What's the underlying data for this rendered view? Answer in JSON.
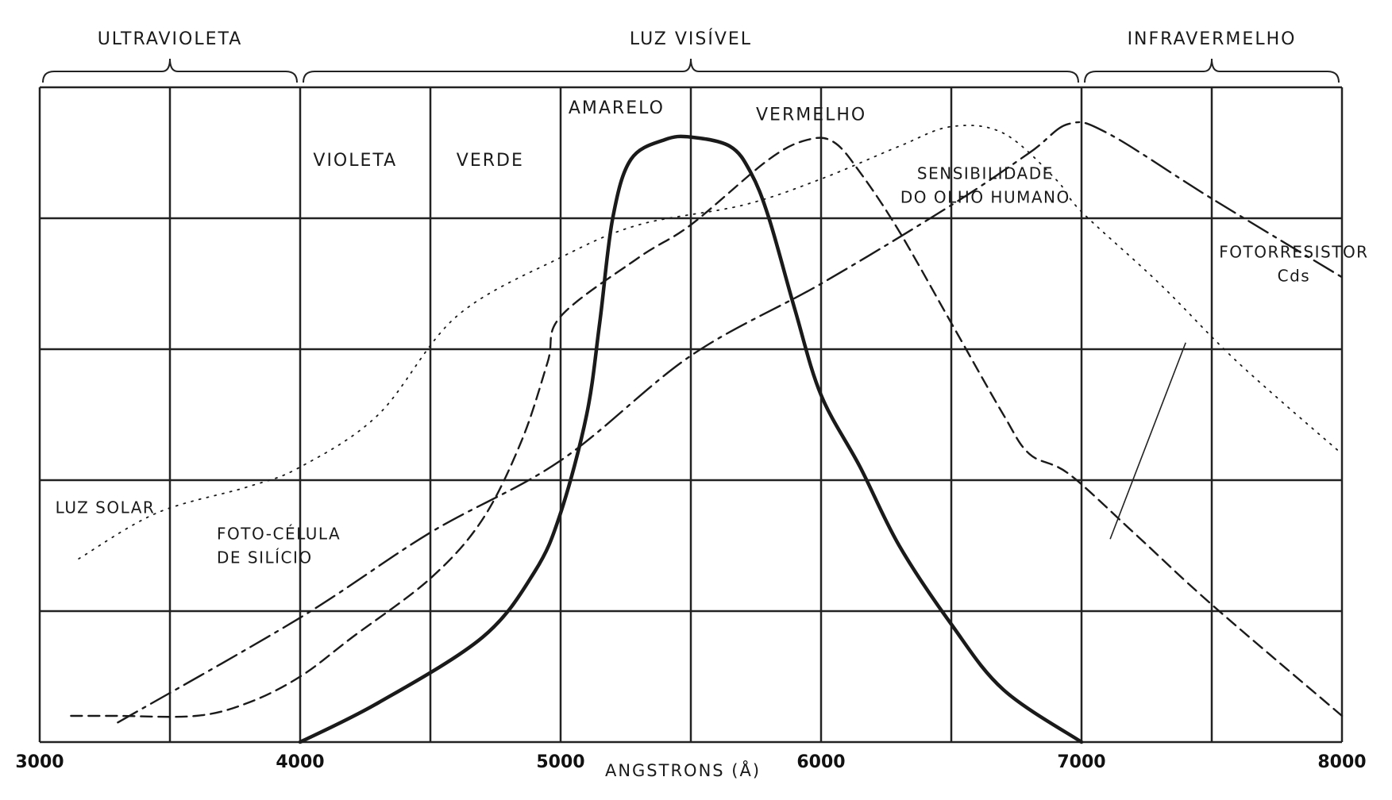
{
  "chart_data": {
    "type": "line",
    "title": "",
    "xlabel": "ANGSTRONS (Å)",
    "ylabel": "",
    "xlim": [
      3000,
      8000
    ],
    "ylim": [
      0,
      5
    ],
    "grid": true,
    "x_ticks": [
      {
        "value": 3000,
        "label": "3000"
      },
      {
        "value": 4000,
        "label": "4000"
      },
      {
        "value": 5000,
        "label": "5000"
      },
      {
        "value": 6000,
        "label": "6000"
      },
      {
        "value": 7000,
        "label": "7000"
      },
      {
        "value": 8000,
        "label": "8000"
      }
    ],
    "regions": [
      {
        "label": "ULTRAVIOLETA",
        "from": 3000,
        "to": 4000
      },
      {
        "label": "LUZ VISÍVEL",
        "from": 4000,
        "to": 7000
      },
      {
        "label": "INFRAVERMELHO",
        "from": 7000,
        "to": 8000
      }
    ],
    "color_bands": [
      {
        "label": "VIOLETA",
        "x": 4050,
        "y": 4.4
      },
      {
        "label": "VERDE",
        "x": 4600,
        "y": 4.4
      },
      {
        "label": "AMARELO",
        "x": 5030,
        "y": 4.8
      },
      {
        "label": "VERMELHO",
        "x": 5750,
        "y": 4.75
      }
    ],
    "annotations": [
      {
        "lines": [
          "LUZ SOLAR"
        ],
        "x": 3060,
        "y": 1.75
      },
      {
        "lines": [
          "FOTO-CÉLULA",
          "DE SILÍCIO"
        ],
        "x": 3680,
        "y": 1.55
      },
      {
        "lines": [
          "SENSIBILIDADE",
          "DO OLHO HUMANO"
        ],
        "x": 6280,
        "y": 4.3
      },
      {
        "lines": [
          "FOTORRESISTOR",
          "Cds"
        ],
        "x": 7480,
        "y": 3.7
      }
    ],
    "series": [
      {
        "id": "olho",
        "style": "solid",
        "points": [
          [
            4000,
            0
          ],
          [
            4300,
            0.3
          ],
          [
            4700,
            0.8
          ],
          [
            4900,
            1.3
          ],
          [
            5000,
            1.75
          ],
          [
            5100,
            2.5
          ],
          [
            5150,
            3.2
          ],
          [
            5200,
            4.0
          ],
          [
            5270,
            4.45
          ],
          [
            5400,
            4.6
          ],
          [
            5500,
            4.62
          ],
          [
            5650,
            4.55
          ],
          [
            5730,
            4.35
          ],
          [
            5800,
            4.0
          ],
          [
            5900,
            3.3
          ],
          [
            6000,
            2.65
          ],
          [
            6150,
            2.1
          ],
          [
            6300,
            1.5
          ],
          [
            6500,
            0.9
          ],
          [
            6700,
            0.4
          ],
          [
            7000,
            0
          ]
        ]
      },
      {
        "id": "fotocelula",
        "style": "dashed",
        "points": [
          [
            3120,
            0.2
          ],
          [
            3300,
            0.2
          ],
          [
            3600,
            0.2
          ],
          [
            3800,
            0.3
          ],
          [
            4000,
            0.5
          ],
          [
            4200,
            0.8
          ],
          [
            4500,
            1.25
          ],
          [
            4700,
            1.7
          ],
          [
            4850,
            2.3
          ],
          [
            4950,
            2.9
          ],
          [
            5000,
            3.25
          ],
          [
            5300,
            3.7
          ],
          [
            5500,
            3.95
          ],
          [
            5800,
            4.45
          ],
          [
            5950,
            4.6
          ],
          [
            6050,
            4.58
          ],
          [
            6150,
            4.35
          ],
          [
            6300,
            3.9
          ],
          [
            6500,
            3.2
          ],
          [
            6700,
            2.5
          ],
          [
            6800,
            2.2
          ],
          [
            6950,
            2.05
          ],
          [
            7200,
            1.6
          ],
          [
            7500,
            1.05
          ],
          [
            8000,
            0.2
          ]
        ]
      },
      {
        "id": "luzsolar",
        "style": "dotted",
        "points": [
          [
            3150,
            1.4
          ],
          [
            3450,
            1.75
          ],
          [
            3800,
            1.95
          ],
          [
            4000,
            2.1
          ],
          [
            4300,
            2.5
          ],
          [
            4600,
            3.25
          ],
          [
            5000,
            3.7
          ],
          [
            5300,
            3.95
          ],
          [
            5700,
            4.1
          ],
          [
            6000,
            4.3
          ],
          [
            6300,
            4.55
          ],
          [
            6500,
            4.7
          ],
          [
            6700,
            4.65
          ],
          [
            6900,
            4.3
          ],
          [
            7000,
            4.05
          ],
          [
            7300,
            3.5
          ],
          [
            7600,
            2.9
          ],
          [
            8000,
            2.2
          ]
        ]
      },
      {
        "id": "fotorresistor",
        "style": "dashdot",
        "points": [
          [
            3300,
            0.15
          ],
          [
            4000,
            0.95
          ],
          [
            4500,
            1.6
          ],
          [
            5000,
            2.15
          ],
          [
            5500,
            2.95
          ],
          [
            6000,
            3.5
          ],
          [
            6500,
            4.1
          ],
          [
            6800,
            4.5
          ],
          [
            6950,
            4.72
          ],
          [
            7100,
            4.65
          ],
          [
            7500,
            4.15
          ],
          [
            8000,
            3.55
          ]
        ]
      }
    ]
  }
}
